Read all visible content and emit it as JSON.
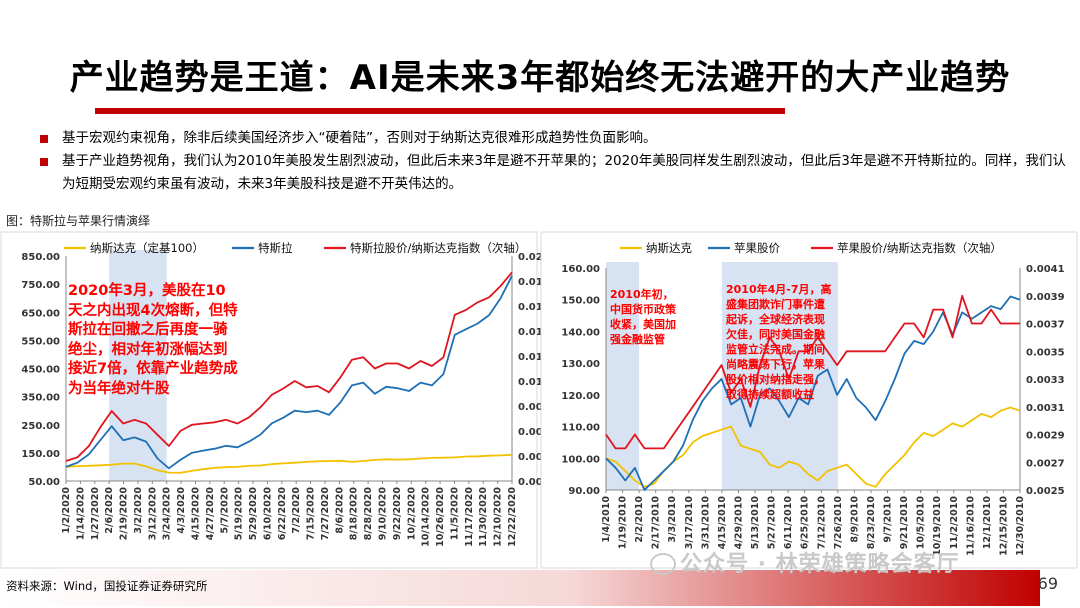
{
  "title": "产业趋势是王道：AI是未来3年都始终无法避开的大产业趋势",
  "bullets": [
    "基于宏观约束视角，除非后续美国经济步入“硬着陆”，否则对于纳斯达克很难形成趋势性负面影响。",
    "基于产业趋势视角，我们认为2010年美股发生剧烈波动，但此后未来3年是避不开苹果的；2020年美股同样发生剧烈波动，但此后3年是避不开特斯拉的。同样，我们认为短期受宏观约束虽有波动，未来3年美股科技是避不开英伟达的。"
  ],
  "figure_caption": "图：特斯拉与苹果行情演绎",
  "source": "资料来源：Wind，国投证券证券研究所",
  "watermark": "公众号 · 林荣雄策略会客厅",
  "page_number": "69",
  "colors": {
    "nasdaq": "#f2c200",
    "stock": "#1f6fb5",
    "ratio": "#e0141e",
    "accent": "#c00000",
    "shade": "#c9d8ee"
  },
  "chart_data": [
    {
      "type": "line",
      "title": "",
      "legend": [
        "纳斯达克（定基100）",
        "特斯拉",
        "特斯拉股价/纳斯达克指数（次轴）"
      ],
      "legend_placement": "top",
      "x_ticks": [
        "1/2/2020",
        "1/14/2020",
        "1/27/2020",
        "2/6/2020",
        "2/19/2020",
        "3/2/2020",
        "3/12/2020",
        "3/24/2020",
        "4/3/2020",
        "4/15/2020",
        "4/27/2020",
        "5/7/2020",
        "5/19/2020",
        "5/29/2020",
        "6/10/2020",
        "6/22/2020",
        "7/2/2020",
        "7/15/2020",
        "7/27/2020",
        "8/6/2020",
        "8/18/2020",
        "8/28/2020",
        "9/10/2020",
        "9/22/2020",
        "10/2/2020",
        "10/14/2020",
        "10/26/2020",
        "11/5/2020",
        "11/17/2020",
        "11/30/2020",
        "12/10/2020",
        "12/22/2020"
      ],
      "y_ticks": [
        "850.00",
        "750.00",
        "650.00",
        "550.00",
        "450.00",
        "350.00",
        "250.00",
        "150.00",
        "50.00"
      ],
      "y_range": [
        50,
        850
      ],
      "y2_ticks": [
        "0.02",
        "0.018",
        "0.016",
        "0.014",
        "0.012",
        "0.01",
        "0.008",
        "0.006",
        "0.004",
        "0.002"
      ],
      "y2_range": [
        0.002,
        0.02
      ],
      "shaded_period": [
        "2/6/2020",
        "3/24/2020"
      ],
      "series": [
        {
          "name": "纳斯达克（定基100）",
          "axis": "left",
          "values": [
            100,
            103,
            104,
            106,
            108,
            112,
            112,
            102,
            88,
            80,
            79,
            86,
            92,
            97,
            99,
            100,
            104,
            105,
            110,
            113,
            115,
            118,
            120,
            121,
            122,
            118,
            121,
            125,
            127,
            126,
            127,
            130,
            132,
            133,
            134,
            137,
            138,
            140,
            141,
            143
          ]
        },
        {
          "name": "特斯拉",
          "axis": "left",
          "values": [
            100,
            115,
            145,
            195,
            245,
            195,
            205,
            190,
            130,
            95,
            125,
            150,
            158,
            165,
            175,
            170,
            190,
            215,
            255,
            275,
            300,
            295,
            300,
            285,
            330,
            390,
            400,
            360,
            385,
            380,
            370,
            400,
            390,
            430,
            570,
            590,
            610,
            640,
            700,
            780
          ]
        },
        {
          "name": "特斯拉股价/纳斯达克指数（次轴）",
          "axis": "right",
          "values": [
            0.0036,
            0.0039,
            0.0048,
            0.0063,
            0.0076,
            0.0066,
            0.0069,
            0.0066,
            0.0057,
            0.0048,
            0.006,
            0.0065,
            0.0066,
            0.0067,
            0.0069,
            0.0066,
            0.0071,
            0.0079,
            0.0089,
            0.0094,
            0.01,
            0.0095,
            0.0096,
            0.0091,
            0.0103,
            0.0117,
            0.0119,
            0.011,
            0.0114,
            0.0114,
            0.011,
            0.0116,
            0.0112,
            0.0119,
            0.0153,
            0.0157,
            0.0163,
            0.0167,
            0.0176,
            0.0187
          ]
        }
      ],
      "annotation": "2020年3月，美股在10天之内出现4次熔断，但特斯拉在回撤之后再度一骑绝尘，相对年初涨幅达到接近7倍，依靠产业趋势成为当年绝对牛股"
    },
    {
      "type": "line",
      "title": "",
      "legend": [
        "纳斯达克",
        "苹果股价",
        "苹果股价/纳斯达克指数（次轴）"
      ],
      "legend_placement": "top",
      "x_ticks": [
        "1/4/2010",
        "1/19/2010",
        "2/2/2010",
        "2/17/2010",
        "3/3/2010",
        "3/17/2010",
        "3/31/2010",
        "4/15/2010",
        "4/29/2010",
        "5/13/2010",
        "5/27/2010",
        "6/11/2010",
        "6/25/2010",
        "7/12/2010",
        "7/26/2010",
        "8/9/2010",
        "8/23/2010",
        "9/7/2010",
        "9/21/2010",
        "10/5/2010",
        "10/19/2010",
        "11/2/2010",
        "11/16/2010",
        "12/1/2010",
        "12/15/2010",
        "12/30/2010"
      ],
      "y_ticks": [
        "160.00",
        "150.00",
        "140.00",
        "130.00",
        "120.00",
        "110.00",
        "100.00",
        "90.00"
      ],
      "y_range": [
        90,
        160
      ],
      "y2_ticks": [
        "0.0041",
        "0.0039",
        "0.0037",
        "0.0035",
        "0.0033",
        "0.0031",
        "0.0029",
        "0.0027",
        "0.0025"
      ],
      "y2_range": [
        0.0025,
        0.0041
      ],
      "shaded_periods": [
        [
          "1/4/2010",
          "2/2/2010"
        ],
        [
          "4/15/2010",
          "7/26/2010"
        ]
      ],
      "series": [
        {
          "name": "纳斯达克",
          "axis": "left",
          "values": [
            100,
            99,
            96,
            93,
            91,
            92,
            96,
            99,
            101,
            105,
            107,
            108,
            109,
            110,
            104,
            103,
            102,
            98,
            97,
            99,
            98,
            95,
            93,
            96,
            97,
            98,
            95,
            92,
            91,
            95,
            98,
            101,
            105,
            108,
            107,
            109,
            111,
            110,
            112,
            114,
            113,
            115,
            116,
            115
          ]
        },
        {
          "name": "苹果股价",
          "axis": "left",
          "values": [
            100,
            97,
            93,
            97,
            90,
            93,
            96,
            99,
            104,
            112,
            118,
            122,
            125,
            117,
            119,
            110,
            120,
            122,
            118,
            113,
            119,
            117,
            126,
            128,
            120,
            125,
            119,
            116,
            112,
            118,
            125,
            133,
            137,
            136,
            140,
            146,
            139,
            146,
            144,
            146,
            148,
            147,
            151,
            150
          ]
        },
        {
          "name": "苹果股价/纳斯达克指数（次轴）",
          "axis": "right",
          "values": [
            0.0029,
            0.0028,
            0.0028,
            0.0029,
            0.0028,
            0.0028,
            0.0028,
            0.0029,
            0.003,
            0.0031,
            0.0032,
            0.0033,
            0.0034,
            0.0032,
            0.0033,
            0.0031,
            0.0034,
            0.0036,
            0.0035,
            0.0033,
            0.0035,
            0.0035,
            0.0036,
            0.0035,
            0.0034,
            0.0035,
            0.0035,
            0.0035,
            0.0035,
            0.0035,
            0.0036,
            0.0037,
            0.0037,
            0.0036,
            0.0038,
            0.0038,
            0.0036,
            0.0039,
            0.0037,
            0.0037,
            0.0038,
            0.0037,
            0.0037,
            0.0037
          ]
        }
      ],
      "annotations": [
        "2010年初，中国货币政策收紧，美国加强金融监管",
        "2010年4月-7月，高盛集团欺诈门事件遭起诉，全球经济表现欠佳，同时美国金融监管立法完成。期间尚略震荡下行，苹果股价相对纳指走强，取得持续超额收益"
      ]
    }
  ]
}
